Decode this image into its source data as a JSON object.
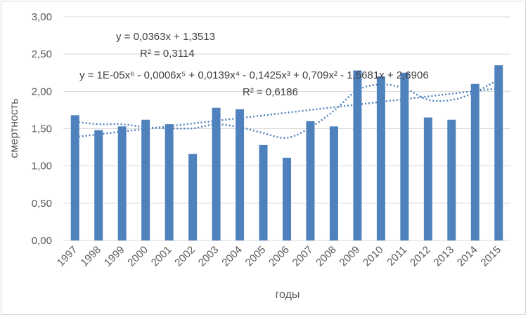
{
  "chart_data": {
    "type": "bar",
    "title": "",
    "xlabel": "годы",
    "ylabel": "смертность",
    "ylim": [
      0,
      3
    ],
    "yticks": [
      "0,00",
      "0,50",
      "1,00",
      "1,50",
      "2,00",
      "2,50",
      "3,00"
    ],
    "categories": [
      "1997",
      "1998",
      "1999",
      "2000",
      "2001",
      "2002",
      "2003",
      "2004",
      "2005",
      "2006",
      "2007",
      "2008",
      "2009",
      "2010",
      "2011",
      "2012",
      "2013",
      "2014",
      "2015"
    ],
    "series": [
      {
        "name": "смертность",
        "values": [
          1.68,
          1.48,
          1.53,
          1.62,
          1.56,
          1.16,
          1.78,
          1.76,
          1.28,
          1.11,
          1.6,
          1.53,
          2.28,
          2.2,
          2.25,
          1.65,
          1.62,
          2.1,
          2.35
        ],
        "color": "#4f81bd"
      }
    ],
    "trendlines": [
      {
        "type": "linear",
        "slope": 0.0363,
        "intercept": 1.3513,
        "equation": "y = 0,0363x + 1,3513",
        "r2": "R² = 0,3114",
        "color": "#4f81bd"
      },
      {
        "type": "polynomial",
        "order": 6,
        "equation": "y = 1E-05x⁶ - 0,0006x⁵ + 0,0139x⁴ - 0,1425x³ + 0,709x² - 1,5681x + 2,6906",
        "r2": "R² = 0,6186",
        "color": "#4f81bd"
      }
    ],
    "grid": true
  }
}
